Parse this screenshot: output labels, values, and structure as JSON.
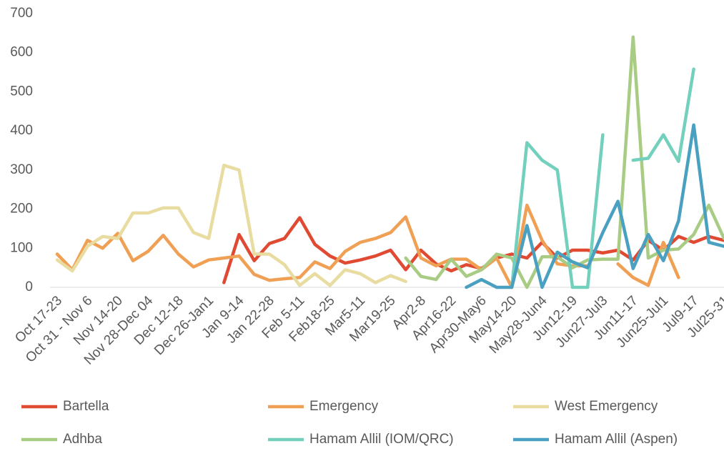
{
  "chart_data": {
    "type": "line",
    "categories": [
      "Oct 17-23",
      null,
      "Oct 31 - Nov 6",
      null,
      "Nov 14-20",
      null,
      "Nov 28-Dec 04",
      null,
      "Dec 12-18",
      null,
      "Dec 26-Jan1",
      null,
      "Jan 9-14",
      null,
      "Jan 22-28",
      null,
      "Feb 5-11",
      null,
      "Feb18-25",
      null,
      "Mar5-11",
      null,
      "Mar19-25",
      null,
      "Apr2-8",
      null,
      "Apr16-22",
      null,
      "Apr30-May6",
      null,
      "May14-20",
      null,
      "May28-Jun4",
      null,
      "Jun12-19",
      null,
      "Jun27-Jul3",
      null,
      "Jun11-17",
      null,
      "Jun25-Jul1",
      null,
      "Jul9-17",
      null,
      "Jul25-31"
    ],
    "series": [
      {
        "name": "Bartella",
        "color": "#e04a33",
        "values": [
          null,
          null,
          null,
          null,
          null,
          null,
          null,
          null,
          null,
          null,
          null,
          12,
          135,
          68,
          112,
          125,
          178,
          110,
          80,
          62,
          70,
          80,
          95,
          45,
          95,
          60,
          42,
          58,
          48,
          75,
          85,
          75,
          115,
          75,
          95,
          95,
          88,
          95,
          70,
          120,
          95,
          130,
          115,
          130,
          120
        ]
      },
      {
        "name": "Emergency",
        "color": "#f0a055",
        "values": [
          85,
          45,
          120,
          100,
          138,
          68,
          92,
          133,
          85,
          52,
          70,
          75,
          80,
          33,
          18,
          22,
          25,
          65,
          48,
          92,
          115,
          125,
          140,
          180,
          75,
          55,
          72,
          72,
          45,
          75,
          0,
          210,
          120,
          60,
          55,
          55,
          null,
          60,
          25,
          5,
          115,
          25,
          null,
          null,
          null
        ]
      },
      {
        "name": "West Emergency",
        "color": "#e8dca0",
        "values": [
          70,
          42,
          105,
          130,
          125,
          190,
          190,
          203,
          203,
          140,
          125,
          312,
          300,
          85,
          85,
          58,
          5,
          35,
          5,
          45,
          35,
          12,
          30,
          15,
          null,
          null,
          null,
          null,
          null,
          null,
          null,
          null,
          null,
          null,
          null,
          null,
          null,
          null,
          null,
          null,
          null,
          null,
          null,
          null,
          null
        ]
      },
      {
        "name": "Adhba",
        "color": "#a8cc84",
        "values": [
          null,
          null,
          null,
          null,
          null,
          null,
          null,
          null,
          null,
          null,
          null,
          null,
          null,
          null,
          null,
          null,
          null,
          null,
          null,
          null,
          null,
          null,
          null,
          75,
          28,
          20,
          72,
          28,
          45,
          85,
          75,
          0,
          78,
          78,
          50,
          70,
          72,
          72,
          640,
          75,
          95,
          98,
          135,
          210,
          125
        ]
      },
      {
        "name": "Hamam Allil (IOM/QRC)",
        "color": "#72d0bc",
        "values": [
          null,
          null,
          null,
          null,
          null,
          null,
          null,
          null,
          null,
          null,
          null,
          null,
          null,
          null,
          null,
          null,
          null,
          null,
          null,
          null,
          null,
          null,
          null,
          null,
          null,
          null,
          null,
          null,
          null,
          null,
          0,
          370,
          325,
          300,
          0,
          0,
          390,
          null,
          325,
          330,
          390,
          322,
          558,
          null,
          null
        ]
      },
      {
        "name": "Hamam Allil (Aspen)",
        "color": "#4aa0c0",
        "values": [
          null,
          null,
          null,
          null,
          null,
          null,
          null,
          null,
          null,
          null,
          null,
          null,
          null,
          null,
          null,
          null,
          null,
          null,
          null,
          null,
          null,
          null,
          null,
          null,
          null,
          null,
          null,
          0,
          20,
          0,
          0,
          158,
          0,
          90,
          65,
          50,
          140,
          220,
          48,
          135,
          68,
          170,
          415,
          115,
          105
        ]
      }
    ],
    "ylim": [
      0,
      700
    ],
    "yticks": [
      0,
      100,
      200,
      300,
      400,
      500,
      600,
      700
    ],
    "grid": false,
    "legend": "bottom"
  }
}
